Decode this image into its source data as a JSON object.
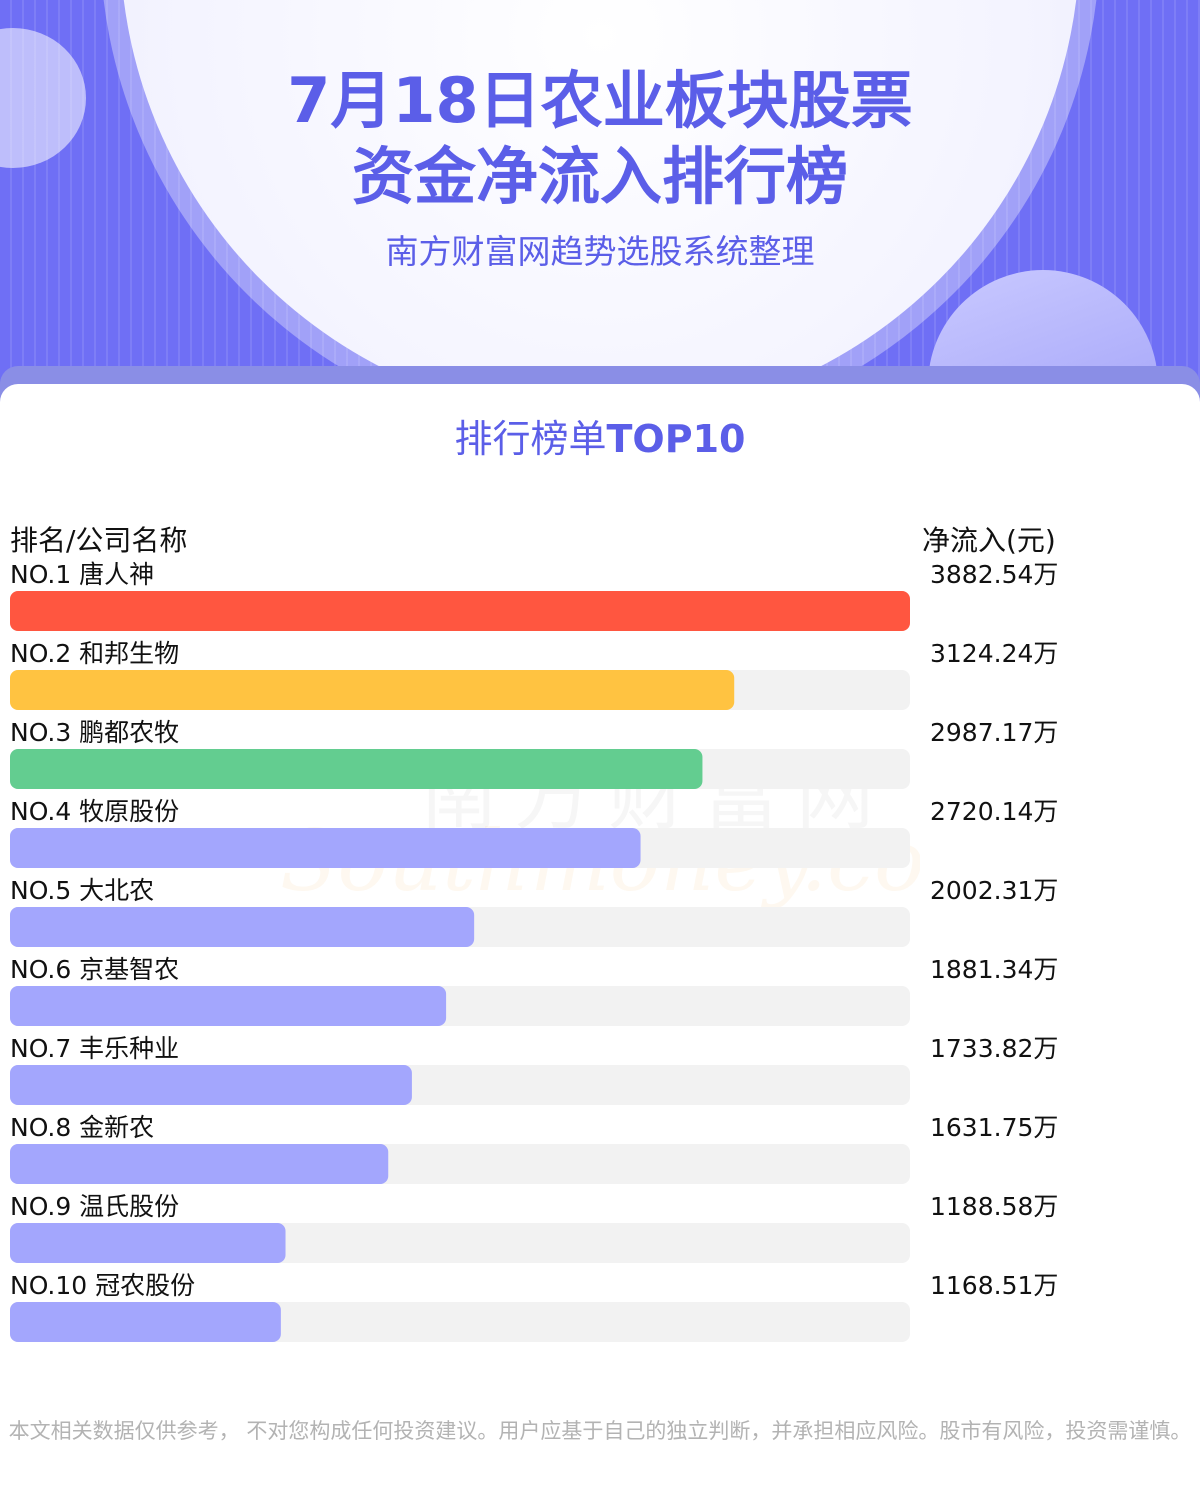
{
  "header": {
    "title_line1": "7月18日农业板块股票",
    "title_line2": "资金净流入排行榜",
    "subtitle": "南方财富网趋势选股系统整理"
  },
  "section": {
    "title_normal": "排行榜单",
    "title_bold": "TOP10"
  },
  "columns": {
    "left": "排名/公司名称",
    "right": "净流入(元)"
  },
  "watermark": {
    "cn": "南方财富网",
    "en": "Southmoney.com"
  },
  "colors": {
    "accent": "#5b5ee8",
    "bar_track": "#f2f2f2",
    "rank1": "#ff5640",
    "rank2": "#ffc341",
    "rank3": "#63cd90",
    "default_bar": "#a3a6fd"
  },
  "chart_data": {
    "type": "bar",
    "orientation": "horizontal",
    "title": "排行榜单TOP10",
    "unit": "万",
    "categories": [
      "NO.1 唐人神",
      "NO.2 和邦生物",
      "NO.3 鹏都农牧",
      "NO.4 牧原股份",
      "NO.5 大北农",
      "NO.6 京基智农",
      "NO.7 丰乐种业",
      "NO.8 金新农",
      "NO.9 温氏股份",
      "NO.10 冠农股份"
    ],
    "values": [
      3882.54,
      3124.24,
      2987.17,
      2720.14,
      2002.31,
      1881.34,
      1733.82,
      1631.75,
      1188.58,
      1168.51
    ],
    "value_labels": [
      "3882.54万",
      "3124.24万",
      "2987.17万",
      "2720.14万",
      "2002.31万",
      "1881.34万",
      "1733.82万",
      "1631.75万",
      "1188.58万",
      "1168.51万"
    ],
    "xlim": [
      0,
      3882.54
    ]
  },
  "footer": {
    "disclaimer": "本文相关数据仅供参考， 不对您构成任何投资建议。用户应基于自己的独立判断，并承担相应风险。股市有风险，投资需谨慎。"
  }
}
